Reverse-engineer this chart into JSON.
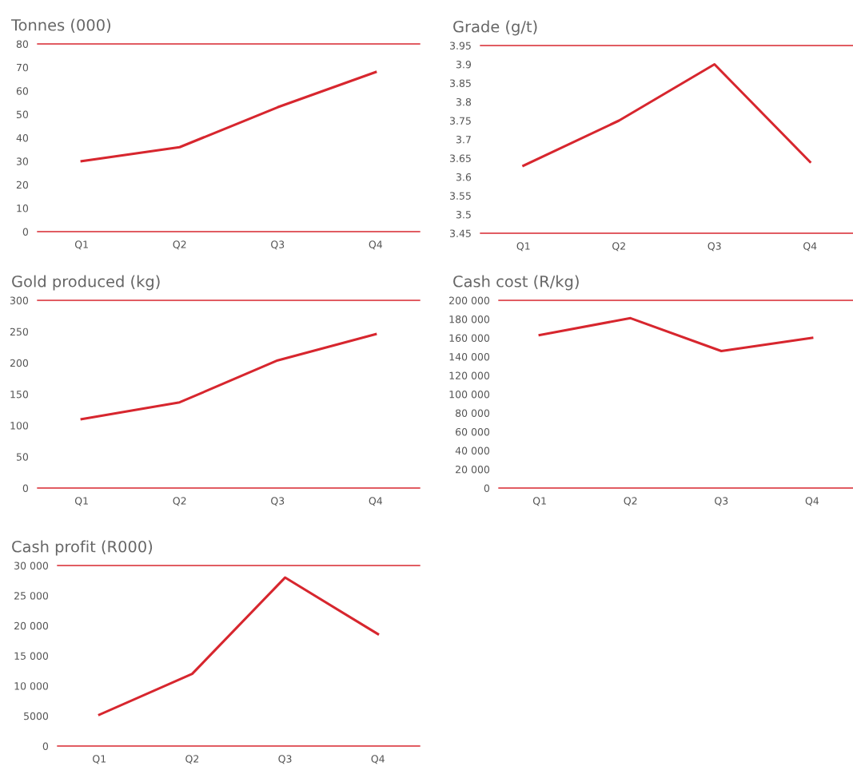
{
  "chart_data": [
    {
      "type": "line",
      "title": "Tonnes (000)",
      "categories": [
        "Q1",
        "Q2",
        "Q3",
        "Q4"
      ],
      "series": [
        {
          "color": "#d7262e",
          "values": [
            30,
            36,
            53,
            68
          ]
        }
      ],
      "ylim": [
        0,
        80
      ],
      "yticks": [
        0,
        10,
        20,
        30,
        40,
        50,
        60,
        70,
        80
      ],
      "grid": false,
      "legend": false,
      "marker": "none",
      "line_style": "solid"
    },
    {
      "type": "line",
      "title": "Grade (g/t)",
      "categories": [
        "Q1",
        "Q2",
        "Q3",
        "Q4"
      ],
      "series": [
        {
          "color": "#d7262e",
          "values": [
            3.63,
            3.75,
            3.9,
            3.64
          ]
        }
      ],
      "ylim": [
        3.45,
        3.95
      ],
      "yticks": [
        3.45,
        3.5,
        3.55,
        3.6,
        3.65,
        3.7,
        3.75,
        3.8,
        3.85,
        3.9,
        3.95
      ],
      "grid": false,
      "legend": false,
      "marker": "none",
      "line_style": "solid"
    },
    {
      "type": "line",
      "title": "Gold produced (kg)",
      "categories": [
        "Q1",
        "Q2",
        "Q3",
        "Q4"
      ],
      "series": [
        {
          "color": "#d7262e",
          "values": [
            110,
            137,
            204,
            246
          ]
        }
      ],
      "ylim": [
        0,
        300
      ],
      "yticks": [
        0,
        50,
        100,
        150,
        200,
        250,
        300
      ],
      "grid": false,
      "legend": false,
      "marker": "none",
      "line_style": "solid"
    },
    {
      "type": "line",
      "title": "Cash cost (R/kg)",
      "categories": [
        "Q1",
        "Q2",
        "Q3",
        "Q4"
      ],
      "series": [
        {
          "color": "#d7262e",
          "values": [
            163000,
            181000,
            146000,
            160000
          ]
        }
      ],
      "ylim": [
        0,
        200000
      ],
      "yticks": [
        0,
        {
          "value": 20000,
          "label": "20 000"
        },
        {
          "value": 40000,
          "label": "40 000"
        },
        {
          "value": 60000,
          "label": "60 000"
        },
        {
          "value": 80000,
          "label": "80 000"
        },
        {
          "value": 100000,
          "label": "100 000"
        },
        {
          "value": 120000,
          "label": "120 000"
        },
        {
          "value": 140000,
          "label": "140 000"
        },
        {
          "value": 160000,
          "label": "160 000"
        },
        {
          "value": 180000,
          "label": "180 000"
        },
        {
          "value": 200000,
          "label": "200 000"
        }
      ],
      "grid": false,
      "legend": false,
      "marker": "none",
      "line_style": "solid"
    },
    {
      "type": "line",
      "title": "Cash profit (R000)",
      "categories": [
        "Q1",
        "Q2",
        "Q3",
        "Q4"
      ],
      "series": [
        {
          "color": "#d7262e",
          "values": [
            5200,
            12000,
            28000,
            18600
          ]
        }
      ],
      "ylim": [
        0,
        30000
      ],
      "yticks": [
        0,
        5000,
        {
          "value": 10000,
          "label": "10 000"
        },
        {
          "value": 15000,
          "label": "15 000"
        },
        {
          "value": 20000,
          "label": "20 000"
        },
        {
          "value": 25000,
          "label": "25 000"
        },
        {
          "value": 30000,
          "label": "30 000"
        }
      ],
      "grid": false,
      "legend": false,
      "marker": "none",
      "line_style": "solid"
    }
  ]
}
